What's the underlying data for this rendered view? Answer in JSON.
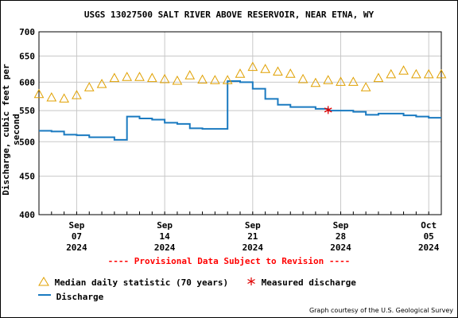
{
  "colors": {
    "median": "#e0a000",
    "discharge": "#1a7ac0",
    "measured": "#e00000",
    "grid": "#c8c8c8",
    "provisional": "#ff0000"
  },
  "chart_data": {
    "type": "line",
    "title": "USGS 13027500 SALT RIVER ABOVE RESERVOIR, NEAR ETNA, WY",
    "ylabel": "Discharge, cubic feet per second",
    "y_scale": "log",
    "ylim": [
      400,
      700
    ],
    "xlim": [
      "2024-09-04",
      "2024-10-06"
    ],
    "grid": true,
    "yticks": [
      {
        "value": 700,
        "label": "700"
      },
      {
        "value": 650,
        "label": "650"
      },
      {
        "value": 600,
        "label": "600"
      },
      {
        "value": 550,
        "label": "550"
      },
      {
        "value": 500,
        "label": "500"
      },
      {
        "value": 450,
        "label": "450"
      },
      {
        "value": 400,
        "label": "400"
      }
    ],
    "xticks": [
      {
        "date": "2024-09-07",
        "line1": "Sep",
        "line2": "07",
        "line3": "2024"
      },
      {
        "date": "2024-09-14",
        "line1": "Sep",
        "line2": "14",
        "line3": "2024"
      },
      {
        "date": "2024-09-21",
        "line1": "Sep",
        "line2": "21",
        "line3": "2024"
      },
      {
        "date": "2024-09-28",
        "line1": "Sep",
        "line2": "28",
        "line3": "2024"
      },
      {
        "date": "2024-10-05",
        "line1": "Oct",
        "line2": "05",
        "line3": "2024"
      }
    ],
    "series": [
      {
        "name": "Median daily statistic (70 years)",
        "marker": "triangle",
        "x": [
          "2024-09-04",
          "2024-09-05",
          "2024-09-06",
          "2024-09-07",
          "2024-09-08",
          "2024-09-09",
          "2024-09-10",
          "2024-09-11",
          "2024-09-12",
          "2024-09-13",
          "2024-09-14",
          "2024-09-15",
          "2024-09-16",
          "2024-09-17",
          "2024-09-18",
          "2024-09-19",
          "2024-09-20",
          "2024-09-21",
          "2024-09-22",
          "2024-09-23",
          "2024-09-24",
          "2024-09-25",
          "2024-09-26",
          "2024-09-27",
          "2024-09-28",
          "2024-09-29",
          "2024-09-30",
          "2024-10-01",
          "2024-10-02",
          "2024-10-03",
          "2024-10-04",
          "2024-10-05",
          "2024-10-06"
        ],
        "y": [
          578,
          572,
          570,
          576,
          590,
          596,
          607,
          609,
          609,
          607,
          605,
          602,
          612,
          604,
          603,
          603,
          615,
          628,
          624,
          619,
          615,
          605,
          598,
          603,
          600,
          600,
          590,
          607,
          614,
          621,
          614,
          614,
          614
        ]
      },
      {
        "name": "Discharge",
        "marker": "step-line",
        "x": [
          "2024-09-04",
          "2024-09-05",
          "2024-09-06",
          "2024-09-07",
          "2024-09-08",
          "2024-09-09",
          "2024-09-10",
          "2024-09-11",
          "2024-09-12",
          "2024-09-13",
          "2024-09-14",
          "2024-09-15",
          "2024-09-16",
          "2024-09-17",
          "2024-09-18",
          "2024-09-19",
          "2024-09-20",
          "2024-09-21",
          "2024-09-22",
          "2024-09-23",
          "2024-09-24",
          "2024-09-25",
          "2024-09-26",
          "2024-09-27",
          "2024-09-28",
          "2024-09-29",
          "2024-09-30",
          "2024-10-01",
          "2024-10-02",
          "2024-10-03",
          "2024-10-04",
          "2024-10-05",
          "2024-10-06"
        ],
        "y": [
          517,
          516,
          511,
          510,
          507,
          507,
          503,
          540,
          537,
          535,
          530,
          528,
          521,
          520,
          520,
          602,
          600,
          588,
          570,
          560,
          556,
          556,
          553,
          550,
          550,
          548,
          543,
          545,
          545,
          542,
          540,
          538,
          538
        ]
      },
      {
        "name": "Measured discharge",
        "marker": "asterisk",
        "x": [
          "2024-09-27"
        ],
        "y": [
          551
        ]
      }
    ],
    "legend": [
      {
        "label": "Median daily statistic (70 years)",
        "icon": "triangle-icon"
      },
      {
        "label": "Measured discharge",
        "icon": "asterisk-icon"
      },
      {
        "label": "Discharge",
        "icon": "line-icon"
      }
    ],
    "annotation": "---- Provisional Data Subject to Revision ----",
    "credit": "Graph courtesy of the U.S. Geological Survey"
  }
}
